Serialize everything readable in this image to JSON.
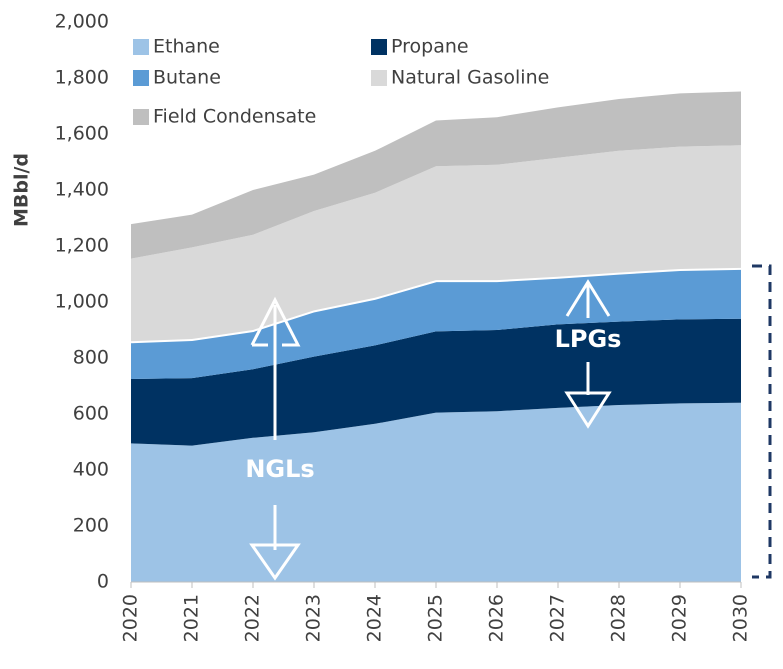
{
  "chart_data": {
    "type": "stacked_area",
    "y_label": "MBbl/d",
    "x": [
      2020,
      2021,
      2022,
      2023,
      2024,
      2025,
      2026,
      2027,
      2028,
      2029,
      2030
    ],
    "xlim": [
      2020,
      2030
    ],
    "xticks": [
      2020,
      2021,
      2022,
      2023,
      2024,
      2025,
      2026,
      2027,
      2028,
      2029,
      2030
    ],
    "ylim": [
      0,
      2000
    ],
    "yticks": [
      0,
      200,
      400,
      600,
      800,
      {
        "value": 1000,
        "label": "1,000"
      },
      {
        "value": 1200,
        "label": "1,200"
      },
      {
        "value": 1400,
        "label": "1,400"
      },
      {
        "value": 1600,
        "label": "1,600"
      },
      {
        "value": 1800,
        "label": "1,800"
      },
      {
        "value": 2000,
        "label": "2,000"
      }
    ],
    "series": [
      {
        "name": "Ethane",
        "color": "#9dc3e6",
        "values": [
          495,
          487,
          515,
          535,
          565,
          605,
          610,
          622,
          632,
          638,
          640
        ]
      },
      {
        "name": "Propane",
        "color": "#003262",
        "values": [
          230,
          241,
          245,
          270,
          280,
          290,
          290,
          298,
          298,
          300,
          300
        ]
      },
      {
        "name": "Butane",
        "color": "#5b9bd5",
        "values": [
          135,
          140,
          140,
          165,
          170,
          183,
          178,
          170,
          175,
          180,
          182
        ]
      },
      {
        "name": "Natural Gasoline",
        "color": "#d9d9d9",
        "values": [
          295,
          327,
          340,
          355,
          375,
          407,
          412,
          425,
          435,
          437,
          438
        ]
      },
      {
        "name": "Field Condensate",
        "color": "#bfbfbf",
        "values": [
          123,
          117,
          160,
          130,
          150,
          163,
          170,
          180,
          185,
          190,
          192
        ]
      }
    ],
    "annotations": [
      "NGLs",
      "LPGs"
    ]
  }
}
